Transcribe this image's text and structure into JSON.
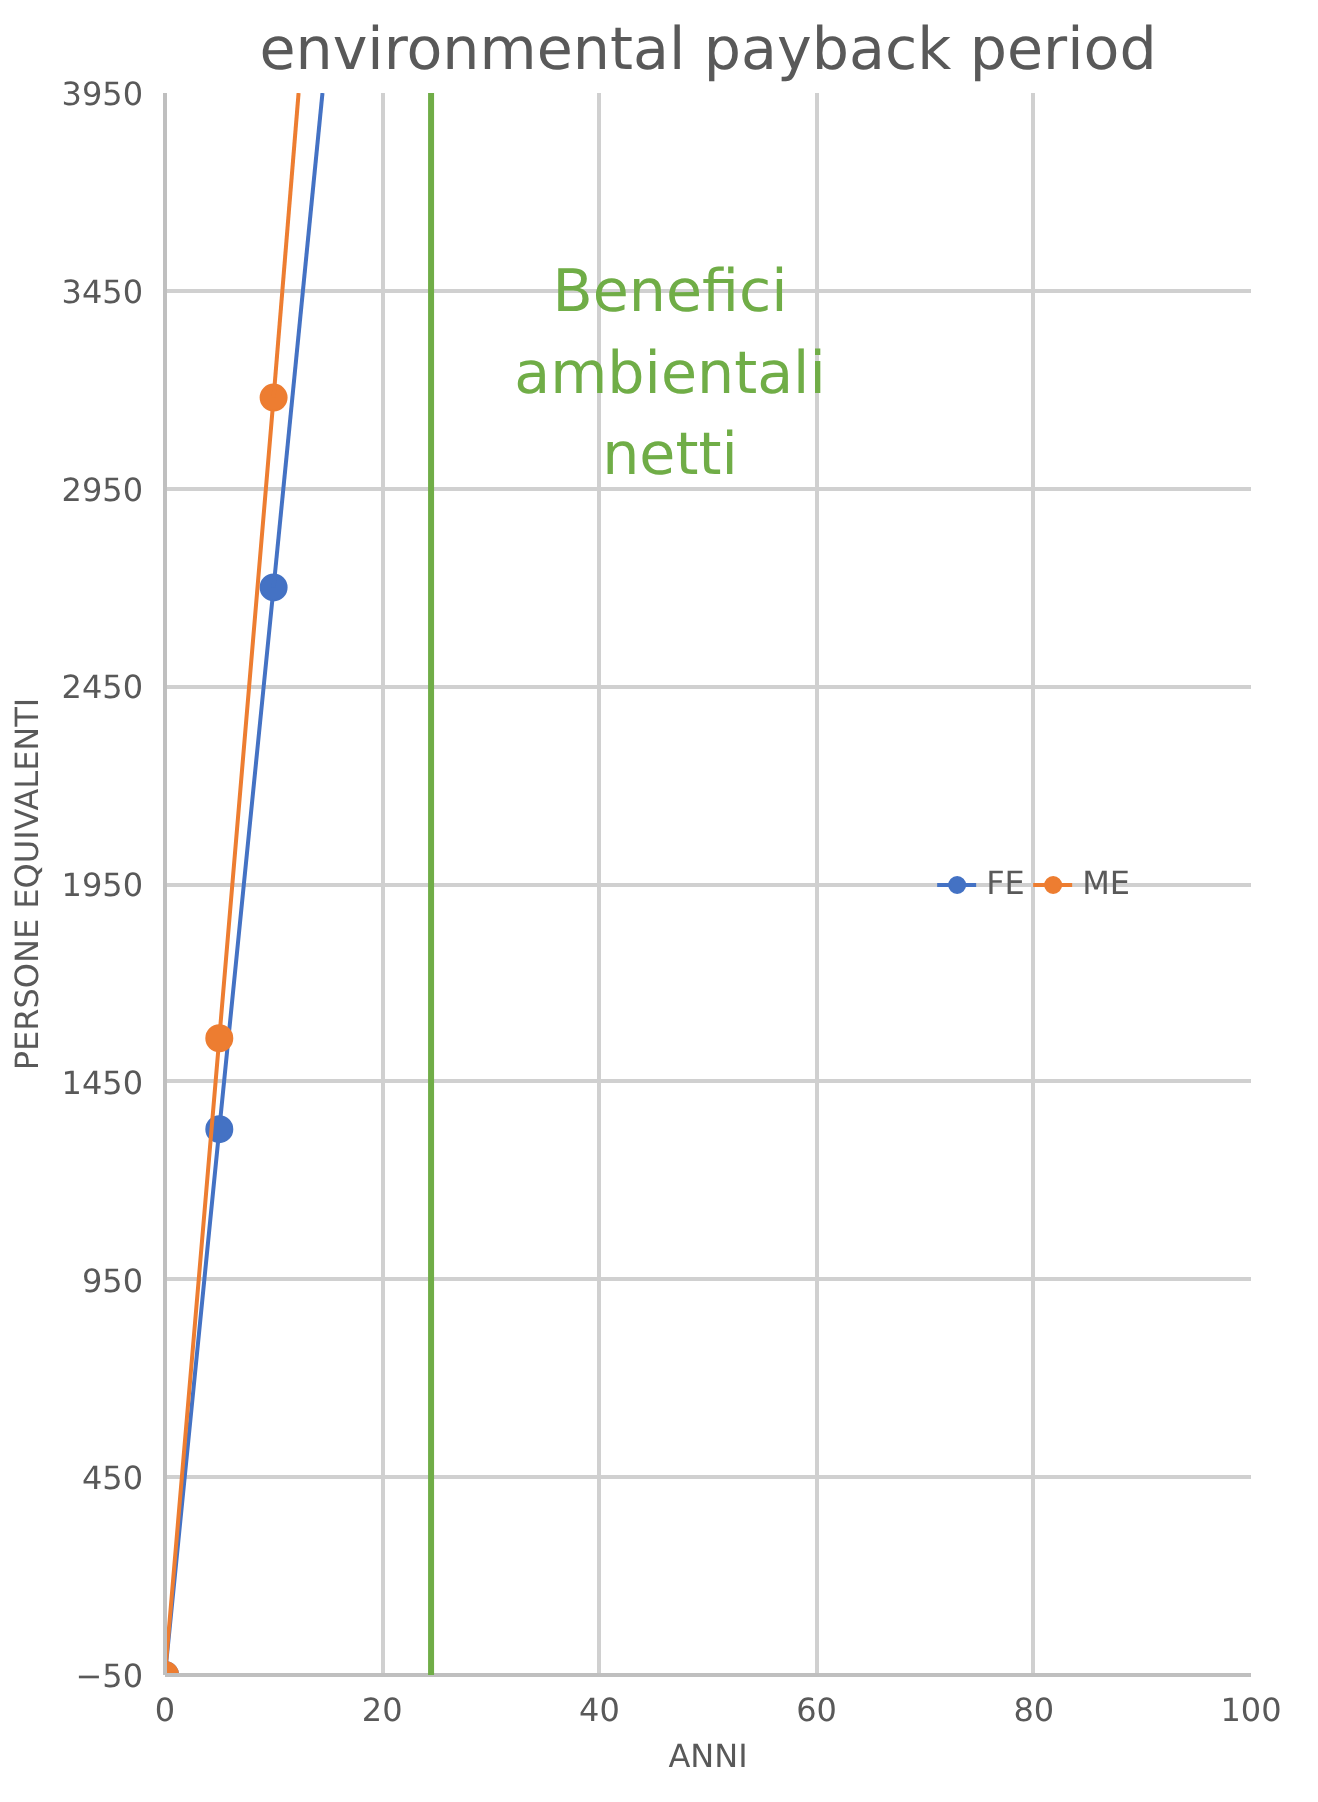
{
  "chart_data": {
    "type": "line",
    "title": "environmental payback period",
    "xlabel": "ANNI",
    "ylabel": "PERSONE EQUIVALENTI",
    "x": [
      0,
      5,
      10
    ],
    "series": [
      {
        "name": "FE",
        "color": "#4472c4",
        "values": [
          -50,
          1330,
          2700
        ]
      },
      {
        "name": "ME",
        "color": "#ed7d31",
        "values": [
          -50,
          1560,
          3180
        ]
      },
      {
        "type": "line",
        "marker": "none",
        "color": "#4472c4",
        "x": [
          10,
          14.5
        ],
        "values": [
          2700,
          3950
        ]
      },
      {
        "type": "line",
        "marker": "none",
        "color": "#ed7d31",
        "x": [
          10,
          12.3
        ],
        "values": [
          3180,
          3950
        ]
      }
    ],
    "xlim": [
      0,
      100
    ],
    "xticks": [
      0,
      20,
      40,
      60,
      80,
      100
    ],
    "ylim": [
      -50,
      3950
    ],
    "yticks": [
      -50,
      450,
      950,
      1450,
      1950,
      2450,
      2950,
      3450,
      3950
    ],
    "ref_lines": [
      {
        "axis": "x",
        "value": 24.5,
        "label": "Benefici\nambientali\nnetti",
        "color": "#70ad47"
      }
    ],
    "grid": true,
    "legend": "right",
    "marker": "circle",
    "line_style": "solid"
  }
}
